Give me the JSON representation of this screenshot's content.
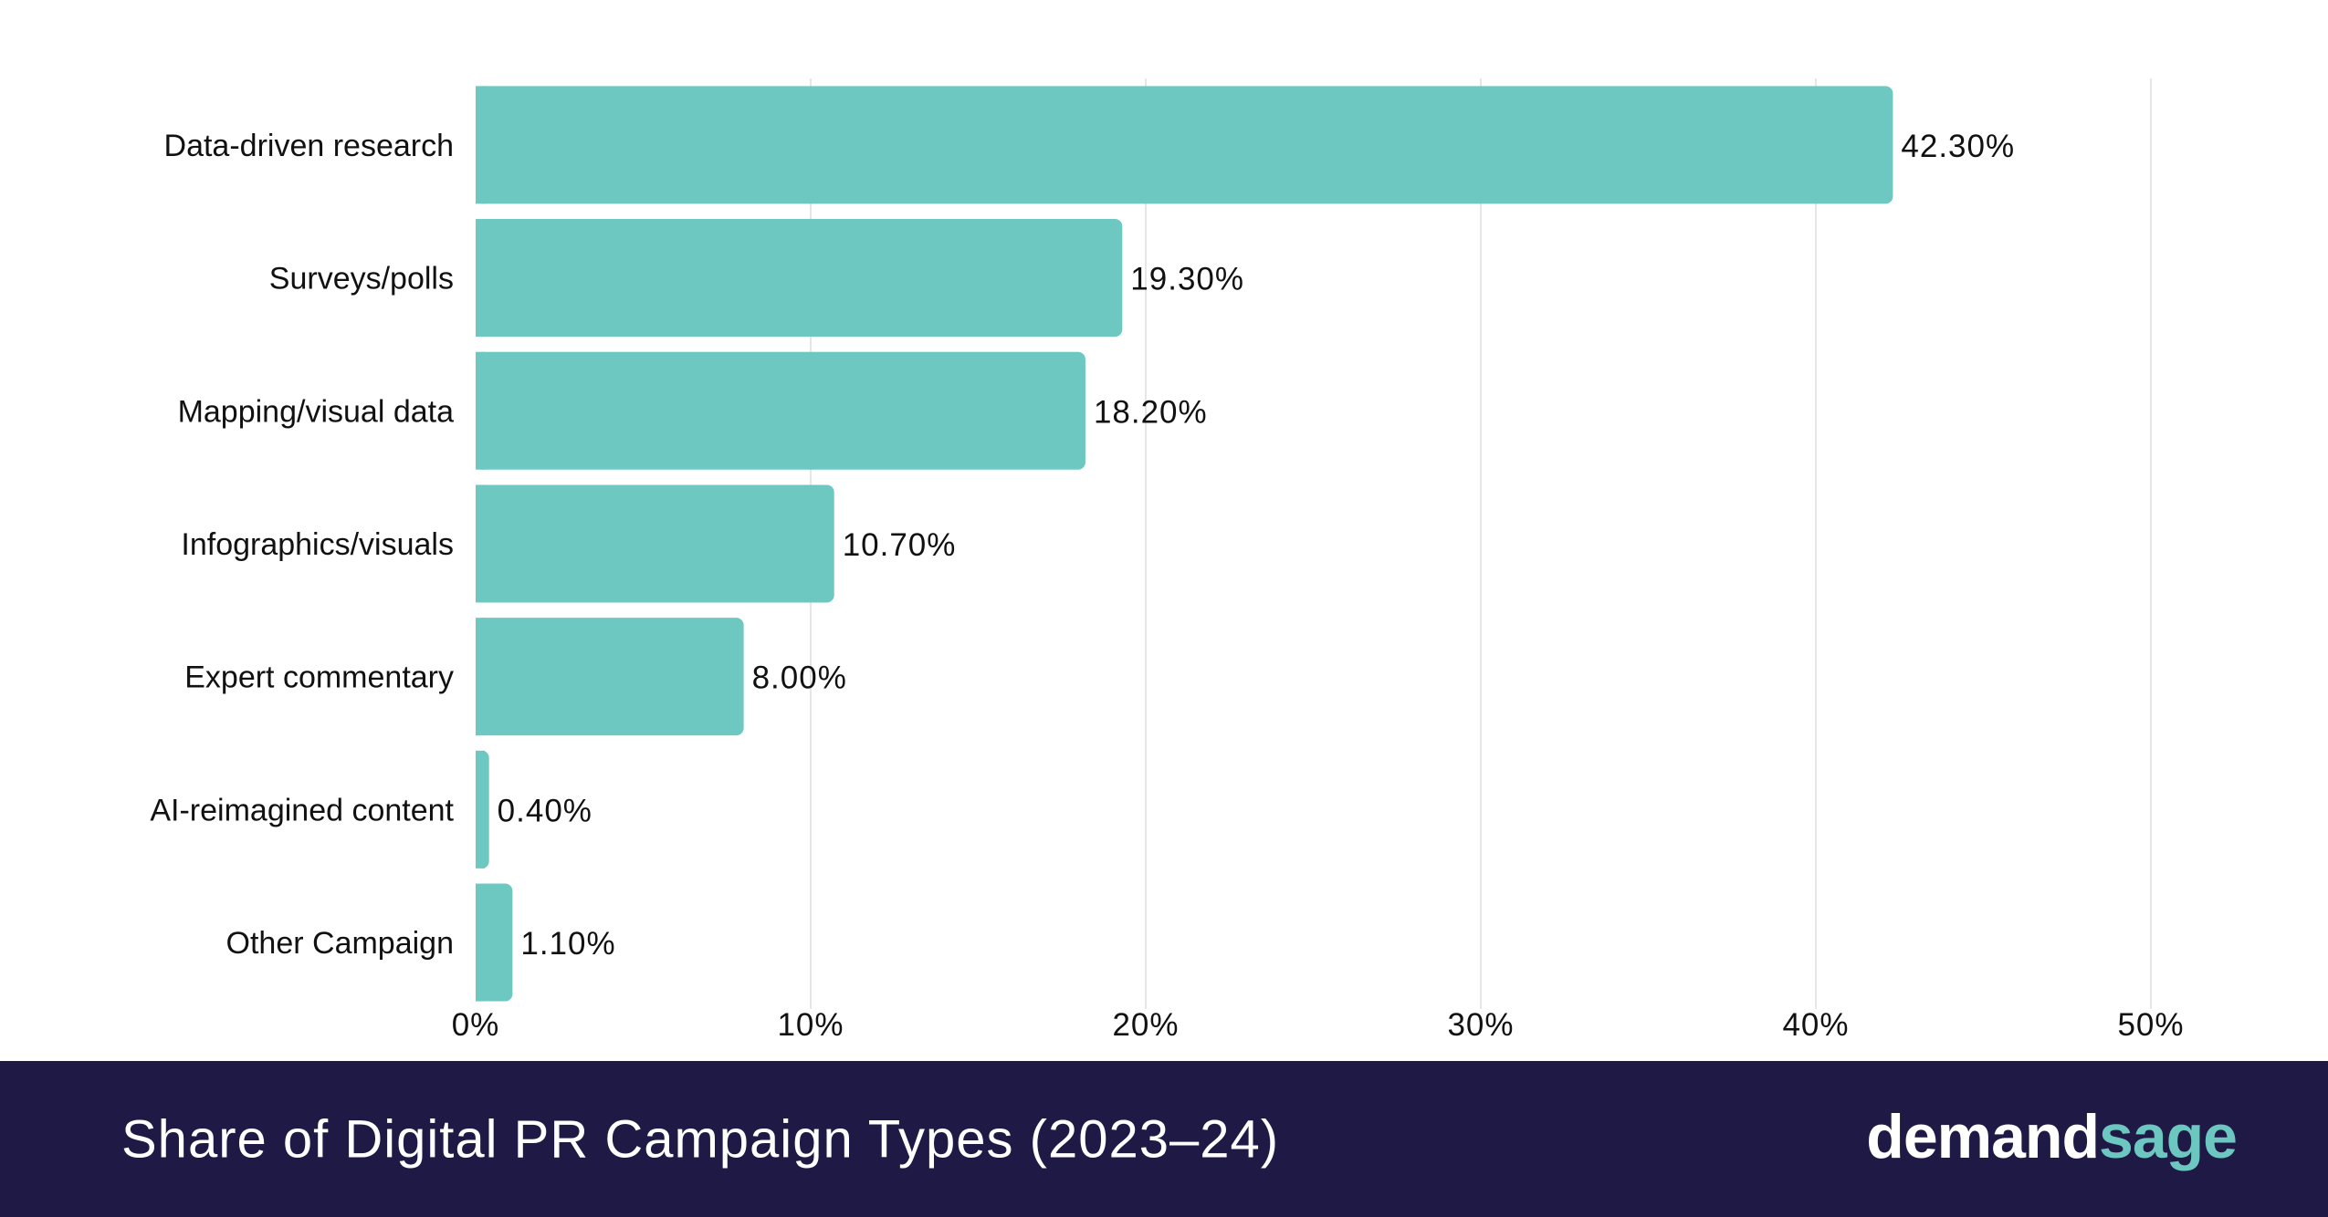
{
  "chart_data": {
    "type": "bar",
    "orientation": "horizontal",
    "categories": [
      "Data-driven research",
      "Surveys/polls",
      "Mapping/visual data",
      "Infographics/visuals",
      "Expert commentary",
      "AI-reimagined content",
      "Other Campaign"
    ],
    "values": [
      42.3,
      19.3,
      18.2,
      10.7,
      8.0,
      0.4,
      1.1
    ],
    "value_labels": [
      "42.30%",
      "19.30%",
      "18.20%",
      "10.70%",
      "8.00%",
      "0.40%",
      "1.10%"
    ],
    "x_ticks": [
      0,
      10,
      20,
      30,
      40,
      50
    ],
    "x_tick_labels": [
      "0%",
      "10%",
      "20%",
      "30%",
      "40%",
      "50%"
    ],
    "xlim": [
      0,
      50
    ],
    "grid": "vertical",
    "bar_color": "#6dc8c1",
    "grid_color": "#e6e6e6"
  },
  "footer": {
    "title": "Share of Digital PR Campaign Types (2023–24)",
    "background": "#1f1a45"
  },
  "brand": {
    "part1": "demand",
    "part2": "sage",
    "accent": "#6cc7c1"
  }
}
